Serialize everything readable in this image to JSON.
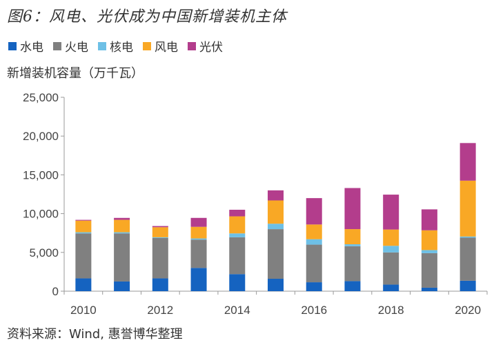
{
  "title": "图6：风电、光伏成为中国新增装机主体",
  "unit_label": "新增装机容量（万千瓦）",
  "source": "资料来源：Wind, 惠誉博华整理",
  "legend": [
    {
      "name": "水电",
      "color": "#1563c0"
    },
    {
      "name": "火电",
      "color": "#808080"
    },
    {
      "name": "核电",
      "color": "#6ec0e6"
    },
    {
      "name": "风电",
      "color": "#f9a825"
    },
    {
      "name": "光伏",
      "color": "#b33d8c"
    }
  ],
  "chart_data": {
    "type": "bar",
    "stacked": true,
    "categories": [
      "2010",
      "2011",
      "2012",
      "2013",
      "2014",
      "2015",
      "2016",
      "2017",
      "2018",
      "2019",
      "2020"
    ],
    "x_tick_labels": [
      "2010",
      "2012",
      "2014",
      "2016",
      "2018",
      "2020"
    ],
    "y_ticks": [
      "0",
      "5,000",
      "10,000",
      "15,000",
      "20,000",
      "25,000"
    ],
    "ylim": [
      0,
      25000
    ],
    "series": [
      {
        "name": "水电",
        "color": "#1563c0",
        "values": [
          1650,
          1250,
          1650,
          3000,
          2200,
          1600,
          1150,
          1300,
          850,
          450,
          1350
        ]
      },
      {
        "name": "火电",
        "color": "#808080",
        "values": [
          5800,
          6200,
          5200,
          3650,
          4750,
          6400,
          4850,
          4500,
          4150,
          4450,
          5550
        ]
      },
      {
        "name": "核电",
        "color": "#6ec0e6",
        "values": [
          150,
          150,
          100,
          150,
          500,
          700,
          700,
          250,
          850,
          400,
          150
        ]
      },
      {
        "name": "风电",
        "color": "#f9a825",
        "values": [
          1500,
          1600,
          1300,
          1500,
          2200,
          3000,
          1900,
          1950,
          2100,
          2550,
          7200
        ]
      },
      {
        "name": "光伏",
        "color": "#b33d8c",
        "values": [
          100,
          250,
          150,
          1150,
          850,
          1300,
          3400,
          5300,
          4500,
          2700,
          4850
        ]
      }
    ],
    "grid": false,
    "legend_position": "top-left"
  }
}
